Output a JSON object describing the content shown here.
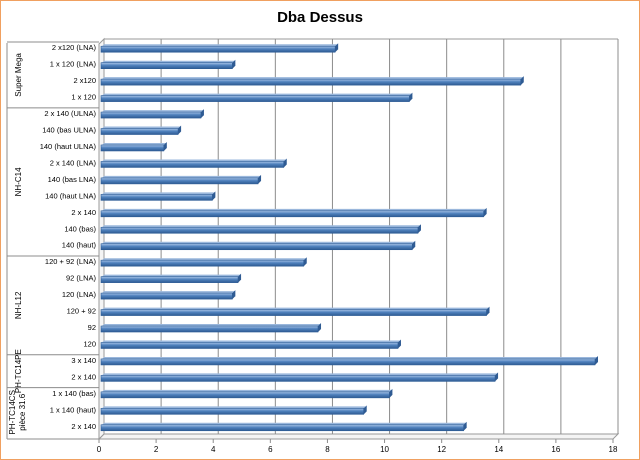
{
  "chart_data": {
    "type": "bar",
    "orientation": "horizontal",
    "title": "Dba Dessus",
    "xlim": [
      0,
      18
    ],
    "xticks": [
      "0",
      "2",
      "4",
      "6",
      "8",
      "10",
      "12",
      "14",
      "16",
      "18"
    ],
    "grid": true,
    "legend": "none",
    "bar_color": "#4f81bd",
    "groups": [
      {
        "name": "Super Mega",
        "categories": [
          "2 x120 (LNA)",
          "1 x 120 (LNA)",
          "2 x120",
          "1 x 120"
        ],
        "values": [
          8.2,
          4.6,
          14.7,
          10.8
        ]
      },
      {
        "name": "NH-C14",
        "categories": [
          "2 x 140 (ULNA)",
          "140 (bas ULNA)",
          "140 (haut ULNA)",
          "2 x 140 (LNA)",
          "140 (bas LNA)",
          "140 (haut LNA)",
          "2 x 140",
          "140 (bas)",
          "140 (haut)"
        ],
        "values": [
          3.5,
          2.7,
          2.2,
          6.4,
          5.5,
          3.9,
          13.4,
          11.1,
          10.9
        ]
      },
      {
        "name": "NH-L12",
        "categories": [
          "120 + 92 (LNA)",
          "92 (LNA)",
          "120 (LNA)",
          "120 + 92",
          "92",
          "120"
        ],
        "values": [
          7.1,
          4.8,
          4.6,
          13.5,
          7.6,
          10.4
        ]
      },
      {
        "name": "PH-TC14PE",
        "categories": [
          "3 x 140",
          "2 x 140"
        ],
        "values": [
          17.3,
          13.8
        ]
      },
      {
        "name": "PH-TC14CS pièce 31.6",
        "categories": [
          "1 x 140 (bas)",
          "1 x 140 (haut)",
          "2 x 140"
        ],
        "values": [
          10.1,
          9.2,
          12.7
        ]
      }
    ]
  }
}
